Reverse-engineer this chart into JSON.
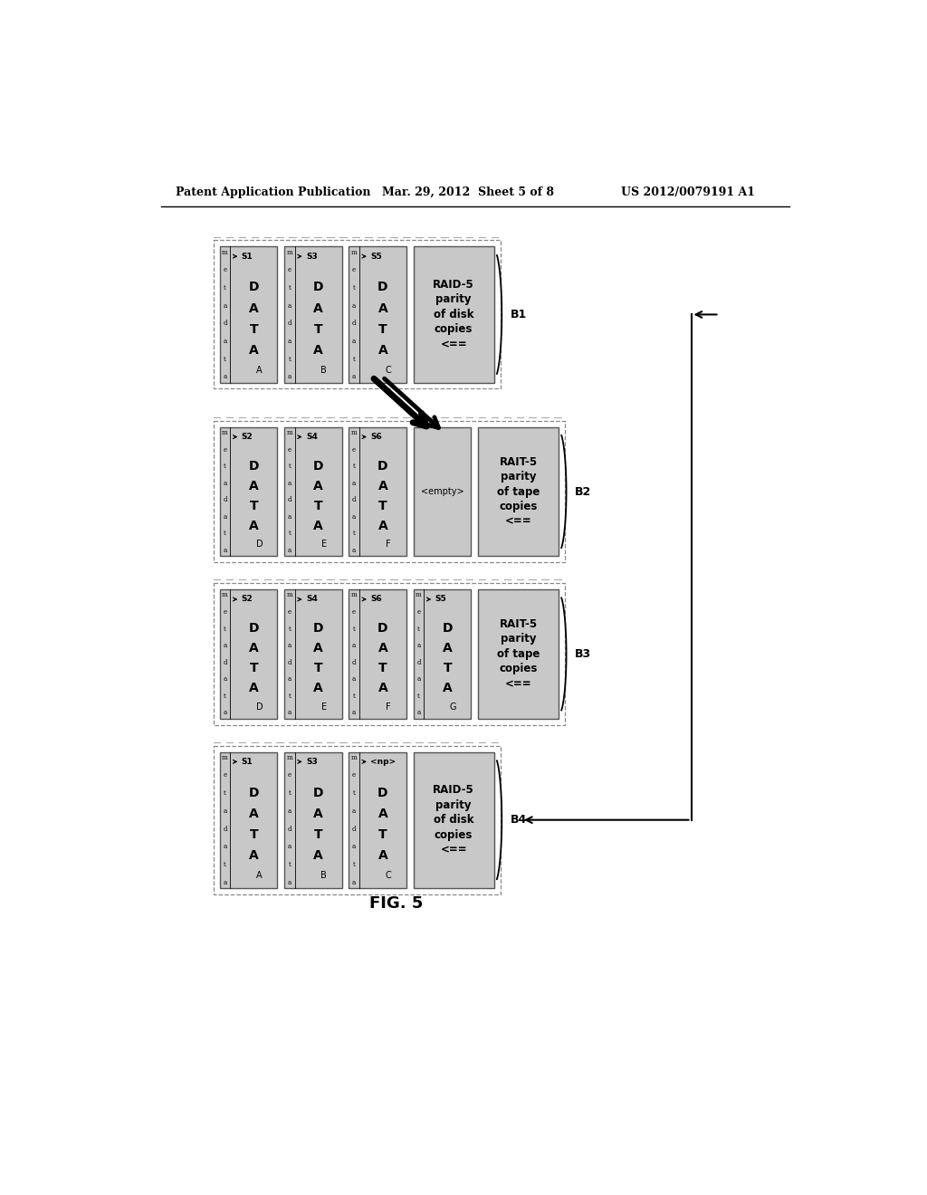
{
  "header_left": "Patent Application Publication",
  "header_mid": "Mar. 29, 2012  Sheet 5 of 8",
  "header_right": "US 2012/0079191 A1",
  "fig_label": "FIG. 5",
  "background": "#ffffff",
  "box_fill": "#c8c8c8",
  "rows": [
    {
      "label": "B1",
      "parity": "RAID-5\nparity\nof disk\ncopies\n<==",
      "cols": [
        {
          "stream": "S1",
          "sub": "A",
          "empty": false
        },
        {
          "stream": "S3",
          "sub": "B",
          "empty": false
        },
        {
          "stream": "S5",
          "sub": "C",
          "empty": false
        }
      ]
    },
    {
      "label": "B2",
      "parity": "RAIT-5\nparity\nof tape\ncopies\n<==",
      "cols": [
        {
          "stream": "S2",
          "sub": "D",
          "empty": false
        },
        {
          "stream": "S4",
          "sub": "E",
          "empty": false
        },
        {
          "stream": "S6",
          "sub": "F",
          "empty": false
        },
        {
          "stream": "",
          "sub": "",
          "empty": true
        }
      ]
    },
    {
      "label": "B3",
      "parity": "RAIT-5\nparity\nof tape\ncopies\n<==",
      "cols": [
        {
          "stream": "S2",
          "sub": "D",
          "empty": false
        },
        {
          "stream": "S4",
          "sub": "E",
          "empty": false
        },
        {
          "stream": "S6",
          "sub": "F",
          "empty": false
        },
        {
          "stream": "S5",
          "sub": "G",
          "empty": false
        }
      ]
    },
    {
      "label": "B4",
      "parity": "RAID-5\nparity\nof disk\ncopies\n<==",
      "cols": [
        {
          "stream": "S1",
          "sub": "A",
          "empty": false
        },
        {
          "stream": "S3",
          "sub": "B",
          "empty": false
        },
        {
          "stream": "<np>",
          "sub": "C",
          "empty": false
        }
      ]
    }
  ]
}
